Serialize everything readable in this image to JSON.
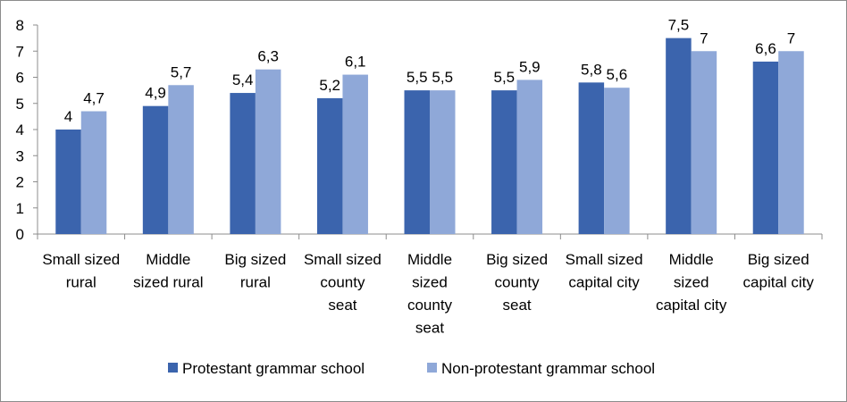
{
  "chart_data": {
    "type": "bar",
    "categories": [
      [
        "Small sized",
        "rural"
      ],
      [
        "Middle",
        "sized rural"
      ],
      [
        "Big sized",
        "rural"
      ],
      [
        "Small sized",
        "county",
        "seat"
      ],
      [
        "Middle",
        "sized",
        "county",
        "seat"
      ],
      [
        "Big sized",
        "county",
        "seat"
      ],
      [
        "Small sized",
        "capital city"
      ],
      [
        "Middle",
        "sized",
        "capital city"
      ],
      [
        "Big sized",
        "capital city"
      ]
    ],
    "series": [
      {
        "name": "Protestant grammar school",
        "color": "#3b64ad",
        "values": [
          4,
          4.9,
          5.4,
          5.2,
          5.5,
          5.5,
          5.8,
          7.5,
          6.6
        ],
        "labels": [
          "4",
          "4,9",
          "5,4",
          "5,2",
          "5,5",
          "5,5",
          "5,8",
          "7,5",
          "6,6"
        ]
      },
      {
        "name": "Non-protestant grammar school",
        "color": "#8fa8d8",
        "values": [
          4.7,
          5.7,
          6.3,
          6.1,
          5.5,
          5.9,
          5.6,
          7,
          7
        ],
        "labels": [
          "4,7",
          "5,7",
          "6,3",
          "6,1",
          "5,5",
          "5,9",
          "5,6",
          "7",
          "7"
        ]
      }
    ],
    "ylim": [
      0,
      8
    ],
    "yticks": [
      "0",
      "1",
      "2",
      "3",
      "4",
      "5",
      "6",
      "7",
      "8"
    ],
    "title": "",
    "xlabel": "",
    "ylabel": "",
    "legend_position": "bottom",
    "grid": false
  }
}
